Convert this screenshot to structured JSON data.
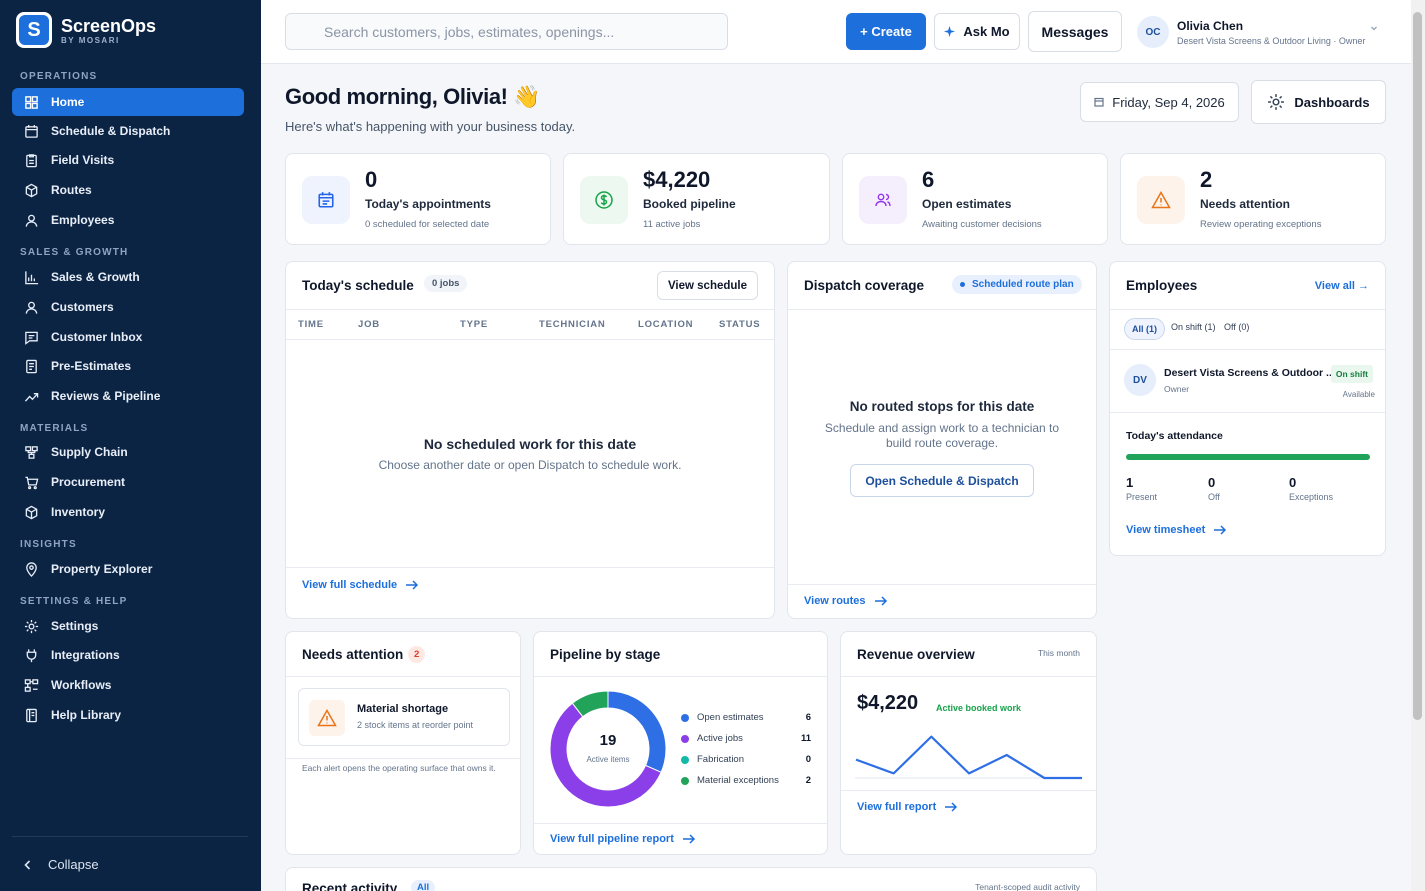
{
  "brand": {
    "name": "ScreenOps",
    "sub": "BY MOSARI",
    "logo_letter": "S"
  },
  "sidebar": {
    "sections": [
      "OPERATIONS",
      "SALES & GROWTH",
      "MATERIALS",
      "INSIGHTS",
      "SETTINGS & HELP"
    ],
    "items": [
      {
        "label": "Home",
        "icon": "grid-icon"
      },
      {
        "label": "Schedule & Dispatch",
        "icon": "calendar-icon"
      },
      {
        "label": "Field Visits",
        "icon": "clipboard-icon"
      },
      {
        "label": "Routes",
        "icon": "cube-icon"
      },
      {
        "label": "Employees",
        "icon": "user-icon"
      },
      {
        "label": "Sales & Growth",
        "icon": "bar-chart-icon"
      },
      {
        "label": "Customers",
        "icon": "user-icon"
      },
      {
        "label": "Customer Inbox",
        "icon": "message-icon"
      },
      {
        "label": "Pre-Estimates",
        "icon": "document-icon"
      },
      {
        "label": "Reviews & Pipeline",
        "icon": "trend-icon"
      },
      {
        "label": "Supply Chain",
        "icon": "network-icon"
      },
      {
        "label": "Procurement",
        "icon": "cart-icon"
      },
      {
        "label": "Inventory",
        "icon": "cube-icon"
      },
      {
        "label": "Property Explorer",
        "icon": "pin-icon"
      },
      {
        "label": "Settings",
        "icon": "sun-icon"
      },
      {
        "label": "Integrations",
        "icon": "plug-icon"
      },
      {
        "label": "Workflows",
        "icon": "workflow-icon"
      },
      {
        "label": "Help Library",
        "icon": "book-icon"
      }
    ],
    "active": "Home",
    "collapse_label": "Collapse"
  },
  "topbar": {
    "search_placeholder": "Search customers, jobs, estimates, openings...",
    "create_label": "+ Create",
    "ask_label": "Ask Mo",
    "messages_label": "Messages",
    "user": {
      "initials": "OC",
      "name": "Olivia Chen",
      "org": "Desert Vista Screens & Outdoor Living · Owner"
    }
  },
  "header": {
    "greeting": "Good morning, Olivia!",
    "greeting_emoji": "👋",
    "subtitle": "Here's what's happening with your business today.",
    "date": "Friday, Sep 4, 2026",
    "dashboards_label": "Dashboards"
  },
  "stats": [
    {
      "value": "0",
      "label": "Today's appointments",
      "sub": "0 scheduled for selected date",
      "icon": "calendar-icon",
      "color": "#2563eb",
      "bg": "#eef3fe"
    },
    {
      "value": "$4,220",
      "label": "Booked pipeline",
      "sub": "11 active jobs",
      "icon": "dollar-icon",
      "color": "#16a34a",
      "bg": "#ecf8f0"
    },
    {
      "value": "6",
      "label": "Open estimates",
      "sub": "Awaiting customer decisions",
      "icon": "users-icon",
      "color": "#9333ea",
      "bg": "#f5eefd"
    },
    {
      "value": "2",
      "label": "Needs attention",
      "sub": "Review operating exceptions",
      "icon": "warning-icon",
      "color": "#ea7317",
      "bg": "#fdf3ea"
    }
  ],
  "schedule": {
    "title": "Today's schedule",
    "count_badge": "0 jobs",
    "view_button": "View schedule",
    "columns": [
      "TIME",
      "JOB",
      "TYPE",
      "TECHNICIAN",
      "LOCATION",
      "STATUS"
    ],
    "empty_title": "No scheduled work for this date",
    "empty_sub": "Choose another date or open Dispatch to schedule work.",
    "footer_link": "View full schedule"
  },
  "dispatch": {
    "title": "Dispatch coverage",
    "badge": "Scheduled route plan",
    "empty_title": "No routed stops for this date",
    "empty_sub": "Schedule and assign work to a technician to build route coverage.",
    "button": "Open Schedule & Dispatch",
    "footer_link": "View routes"
  },
  "employees": {
    "title": "Employees",
    "view_all": "View all →",
    "filters": [
      "All (1)",
      "On shift (1)",
      "Off (0)"
    ],
    "member": {
      "initials": "DV",
      "name": "Desert Vista Screens & Outdoor ...",
      "role": "Owner",
      "status": "On shift",
      "availability": "Available"
    },
    "attendance_title": "Today's attendance",
    "attendance_fill": 1.0,
    "attendance": [
      {
        "value": "1",
        "label": "Present"
      },
      {
        "value": "0",
        "label": "Off"
      },
      {
        "value": "0",
        "label": "Exceptions"
      }
    ],
    "timesheet_link": "View timesheet"
  },
  "needs_attention": {
    "title": "Needs attention",
    "count": "2",
    "alert_title": "Material shortage",
    "alert_sub": "2 stock items at reorder point",
    "note": "Each alert opens the operating surface that owns it."
  },
  "pipeline": {
    "title": "Pipeline by stage",
    "center_value": "19",
    "center_label": "Active items",
    "footer_link": "View full pipeline report"
  },
  "revenue": {
    "title": "Revenue overview",
    "period": "This month",
    "value": "$4,220",
    "badge": "Active booked work",
    "footer_link": "View full report"
  },
  "activity": {
    "title": "Recent activity",
    "filter": "All",
    "note": "Tenant-scoped audit activity"
  },
  "chart_data": [
    {
      "type": "pie",
      "categories": [
        "Open estimates",
        "Active jobs",
        "Fabrication",
        "Material exceptions"
      ],
      "values": [
        6,
        11,
        0,
        2
      ],
      "colors": [
        "#2f6fe6",
        "#8b3fe8",
        "#14b8a6",
        "#22a35a"
      ]
    },
    {
      "type": "line",
      "series": [
        {
          "values": [
            4,
            1,
            9,
            1,
            5,
            0,
            0
          ]
        }
      ],
      "ylim": [
        0,
        10
      ],
      "color": "#2f6fe6"
    }
  ]
}
